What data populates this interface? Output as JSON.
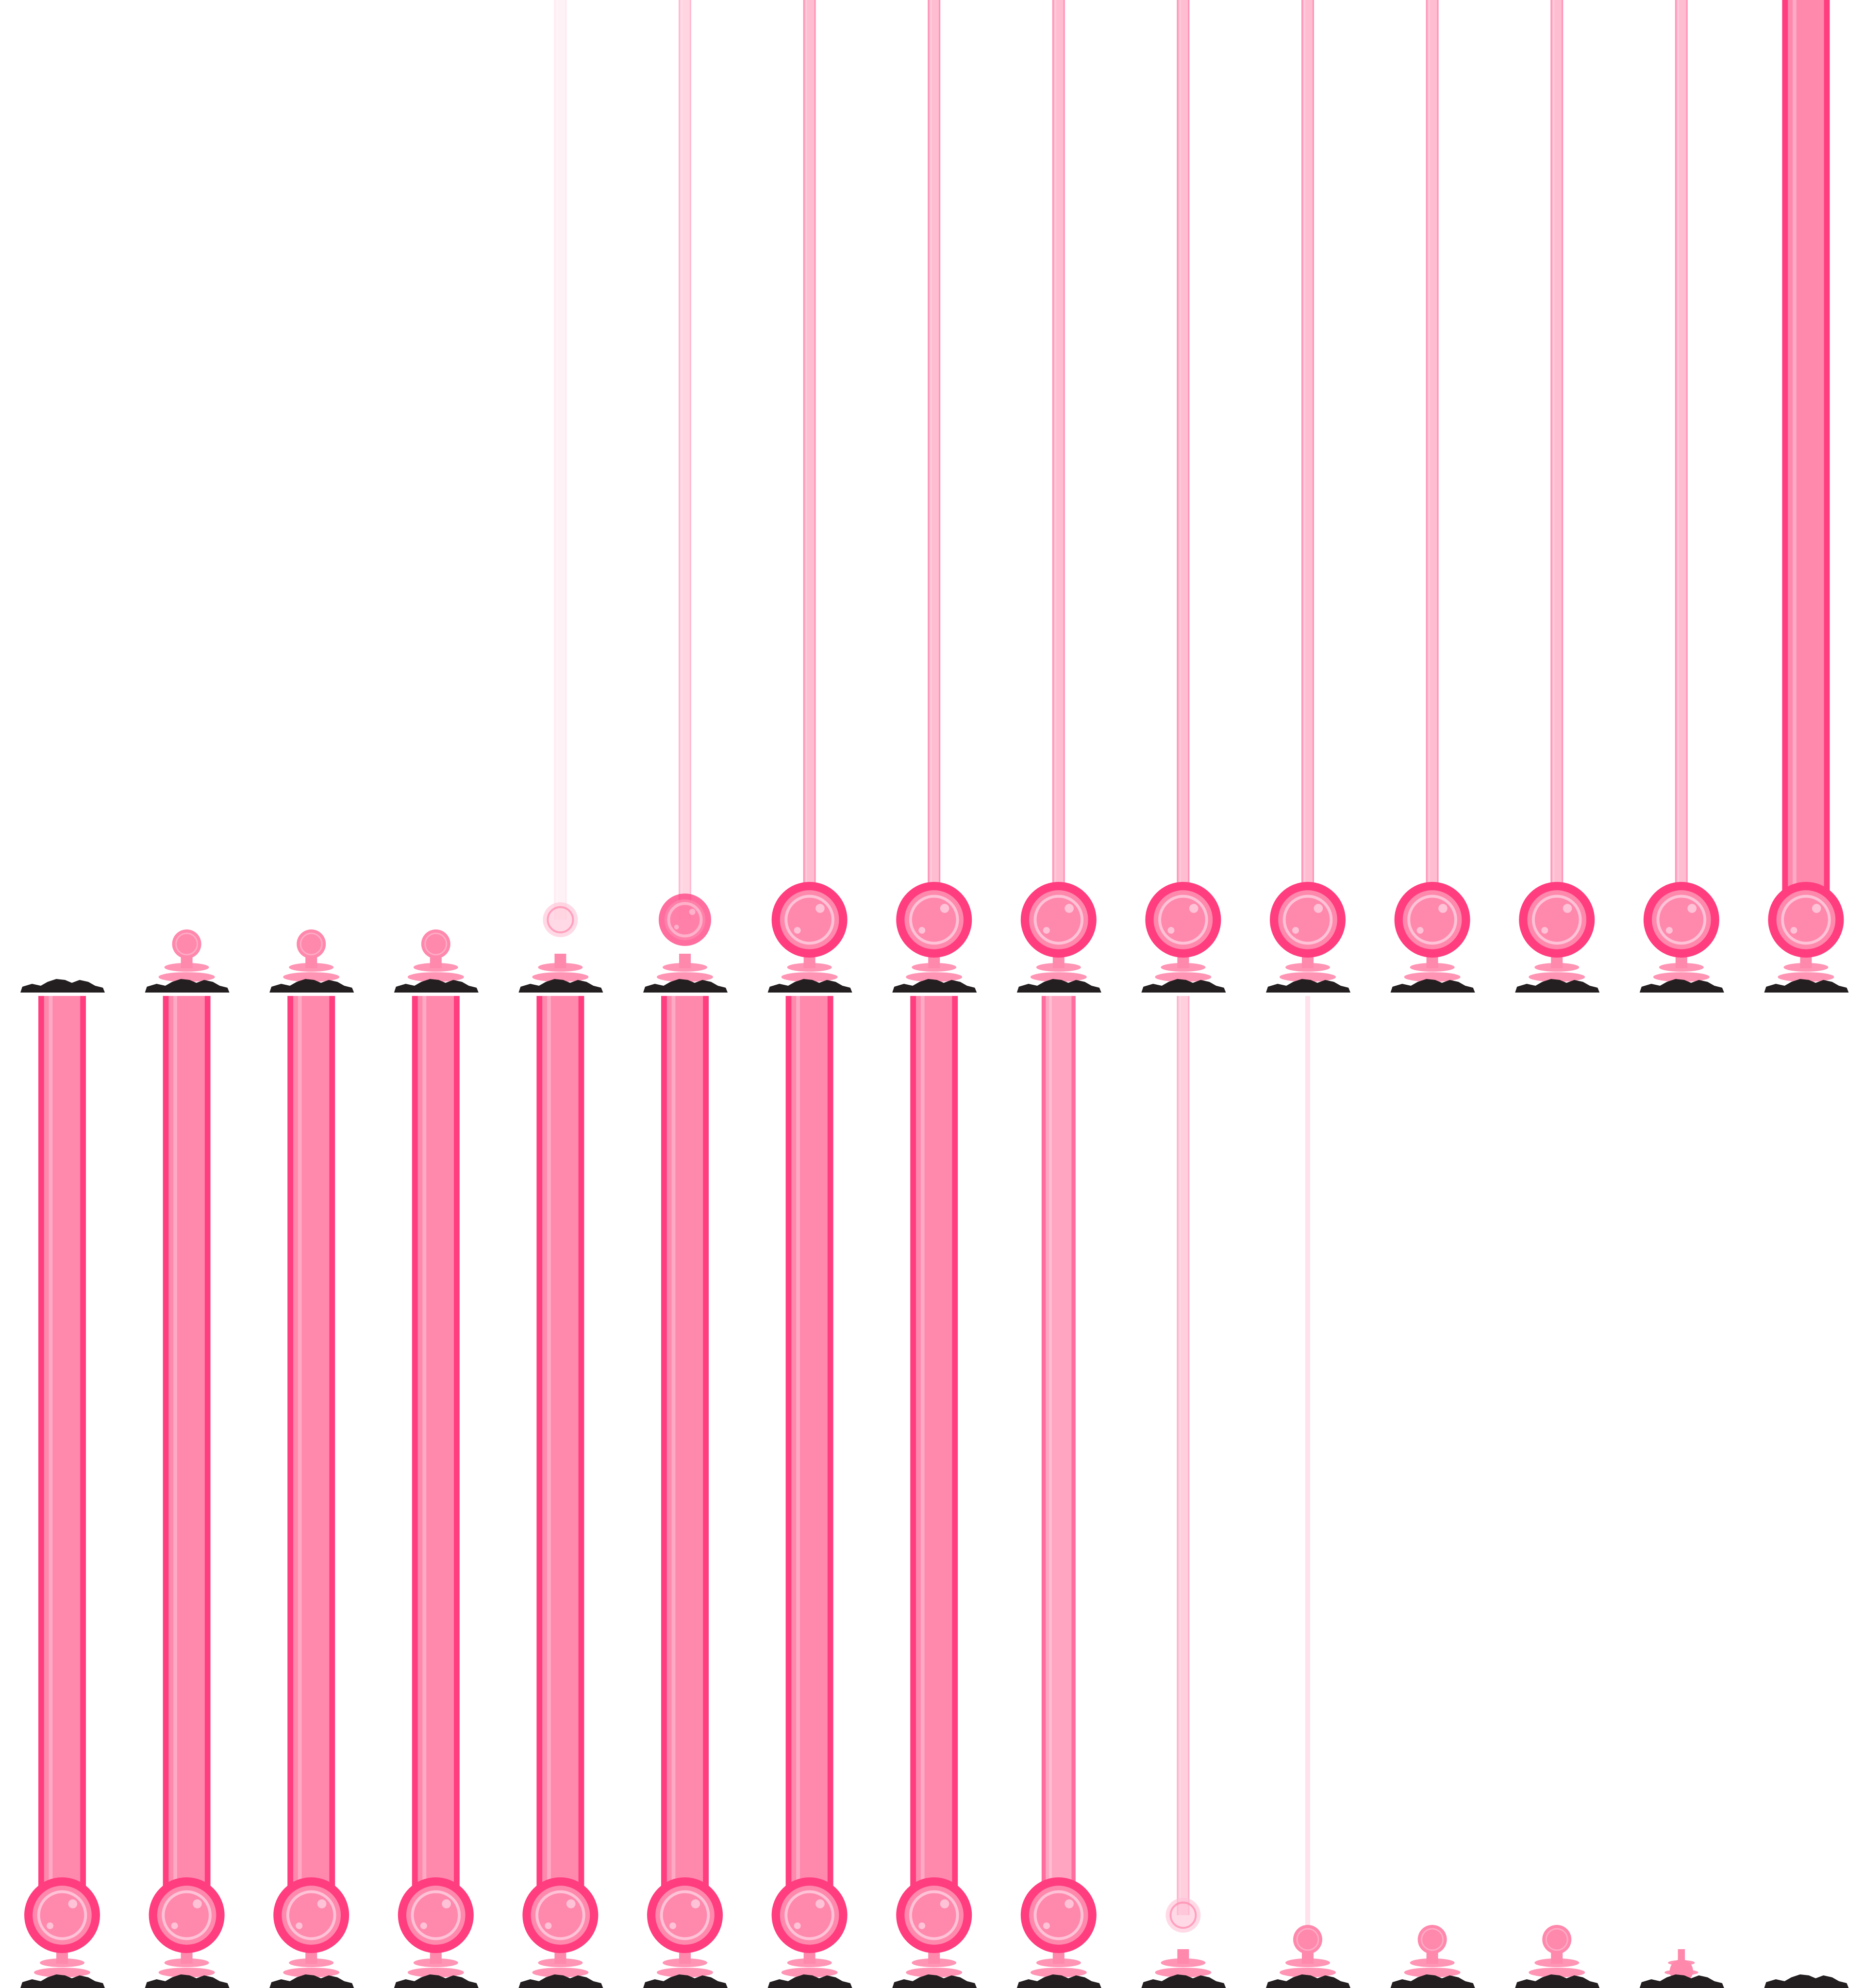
{
  "sprite_sheet": {
    "grid": {
      "columns": 15,
      "rows": 2
    },
    "colors": {
      "background": "#ffffff",
      "beam_outer": "#ff3d7f",
      "beam_inner": "#ff88ad",
      "beam_highlight": "#ffc2d6",
      "orb_ring": "#ff3d7f",
      "orb_fill": "#ff88ad",
      "orb_glare": "#ffc2d6",
      "pedestal": "#ff88ad",
      "rock": "#231f20"
    },
    "rows": [
      {
        "name": "beam-extend",
        "frames": [
          {
            "stage": "base",
            "beam_opacity": 0,
            "orb": "none"
          },
          {
            "stage": "nub",
            "beam_opacity": 0,
            "orb": "small"
          },
          {
            "stage": "stalk",
            "beam_opacity": 0,
            "orb": "small"
          },
          {
            "stage": "stalk",
            "beam_opacity": 0,
            "orb": "small"
          },
          {
            "stage": "charging",
            "beam_opacity": 0.1,
            "orb": "faint"
          },
          {
            "stage": "charging",
            "beam_opacity": 0.35,
            "orb": "medium"
          },
          {
            "stage": "full",
            "beam_opacity": 0.55,
            "orb": "large"
          },
          {
            "stage": "full",
            "beam_opacity": 0.55,
            "orb": "large"
          },
          {
            "stage": "full",
            "beam_opacity": 0.55,
            "orb": "large"
          },
          {
            "stage": "full",
            "beam_opacity": 0.55,
            "orb": "large"
          },
          {
            "stage": "full",
            "beam_opacity": 0.55,
            "orb": "large"
          },
          {
            "stage": "full",
            "beam_opacity": 0.55,
            "orb": "large"
          },
          {
            "stage": "full",
            "beam_opacity": 0.55,
            "orb": "large"
          },
          {
            "stage": "full",
            "beam_opacity": 0.55,
            "orb": "large"
          },
          {
            "stage": "full",
            "beam_opacity": 1,
            "orb": "large",
            "beam_width": "thick"
          }
        ]
      },
      {
        "name": "beam-retract",
        "frames": [
          {
            "stage": "full",
            "beam_opacity": 1,
            "orb": "large",
            "beam_width": "thick"
          },
          {
            "stage": "full",
            "beam_opacity": 1,
            "orb": "large",
            "beam_width": "thick"
          },
          {
            "stage": "full",
            "beam_opacity": 1,
            "orb": "large",
            "beam_width": "thick"
          },
          {
            "stage": "full",
            "beam_opacity": 1,
            "orb": "large",
            "beam_width": "thick"
          },
          {
            "stage": "full",
            "beam_opacity": 1,
            "orb": "large",
            "beam_width": "thick"
          },
          {
            "stage": "full",
            "beam_opacity": 1,
            "orb": "large",
            "beam_width": "thick"
          },
          {
            "stage": "full",
            "beam_opacity": 1,
            "orb": "large",
            "beam_width": "thick"
          },
          {
            "stage": "full",
            "beam_opacity": 1,
            "orb": "large",
            "beam_width": "thick"
          },
          {
            "stage": "fading",
            "beam_opacity": 0.75,
            "orb": "large",
            "beam_width": "medium"
          },
          {
            "stage": "fading",
            "beam_opacity": 0.4,
            "orb": "faint",
            "beam_width": "thin"
          },
          {
            "stage": "fading",
            "beam_opacity": 0.15,
            "orb": "small",
            "beam_width": "hair"
          },
          {
            "stage": "stalk",
            "beam_opacity": 0,
            "orb": "small"
          },
          {
            "stage": "stalk",
            "beam_opacity": 0,
            "orb": "small"
          },
          {
            "stage": "nub",
            "beam_opacity": 0,
            "orb": "tiny"
          },
          {
            "stage": "base",
            "beam_opacity": 0,
            "orb": "none"
          }
        ]
      }
    ]
  }
}
